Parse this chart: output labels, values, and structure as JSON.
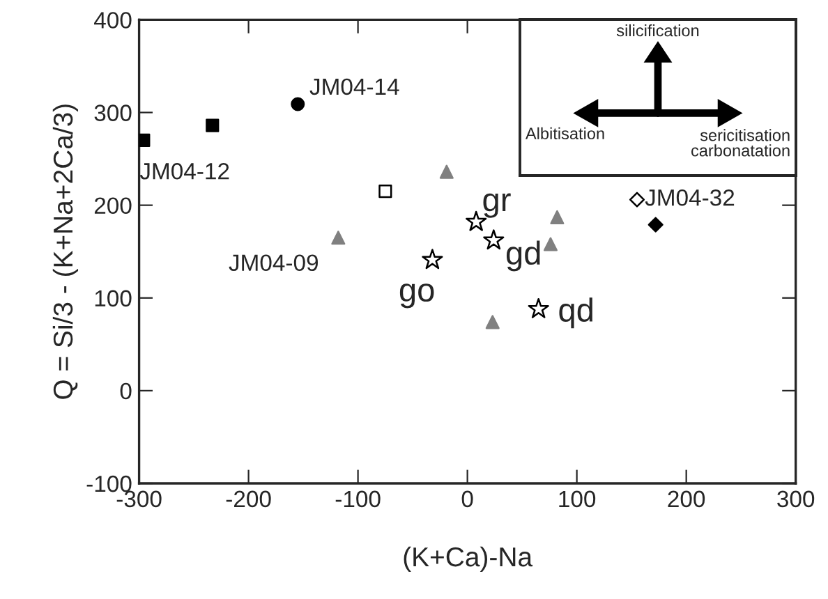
{
  "chart_data": {
    "type": "scatter",
    "xlabel": "(K+Ca)-Na",
    "ylabel": "Q = Si/3 - (K+Na+2Ca/3)",
    "xlim": [
      -300,
      300
    ],
    "ylim": [
      -100,
      400
    ],
    "xticks": [
      -300,
      -200,
      -100,
      0,
      100,
      200,
      300
    ],
    "yticks": [
      -100,
      0,
      100,
      200,
      300,
      400
    ],
    "grid": false,
    "legend": false,
    "series": [
      {
        "marker": "square",
        "color": "#000000",
        "x": [
          -296,
          -233
        ],
        "values": [
          270,
          286
        ]
      },
      {
        "marker": "circle",
        "color": "#000000",
        "x": [
          -155
        ],
        "values": [
          309
        ]
      },
      {
        "marker": "triangle",
        "color": "#808080",
        "x": [
          -118,
          -19,
          82,
          76,
          23
        ],
        "values": [
          165,
          236,
          187,
          158,
          74
        ]
      },
      {
        "marker": "square",
        "color": "#ffffff",
        "x": [
          -75
        ],
        "values": [
          215
        ]
      },
      {
        "marker": "star",
        "color": "#ffffff",
        "x": [
          -32,
          8,
          24,
          65
        ],
        "values": [
          141,
          182,
          162,
          88
        ]
      },
      {
        "marker": "diamond",
        "color": "#ffffff",
        "x": [
          155
        ],
        "values": [
          206
        ]
      },
      {
        "marker": "diamond",
        "color": "#000000",
        "x": [
          172
        ],
        "values": [
          179
        ]
      }
    ],
    "annotations": [
      {
        "text": "JM04-12",
        "x": -296,
        "y": 270
      },
      {
        "text": "JM04-14",
        "x": -155,
        "y": 309
      },
      {
        "text": "JM04-09",
        "x": -118,
        "y": 165
      },
      {
        "text": "go",
        "x": -32,
        "y": 141
      },
      {
        "text": "gr",
        "x": 8,
        "y": 182
      },
      {
        "text": "gd",
        "x": 24,
        "y": 162
      },
      {
        "text": "qd",
        "x": 65,
        "y": 88
      },
      {
        "text": "JM04-32",
        "x": 155,
        "y": 206
      },
      "silicification",
      "Albitisation",
      "sericitisation\ncarbonatation"
    ]
  }
}
